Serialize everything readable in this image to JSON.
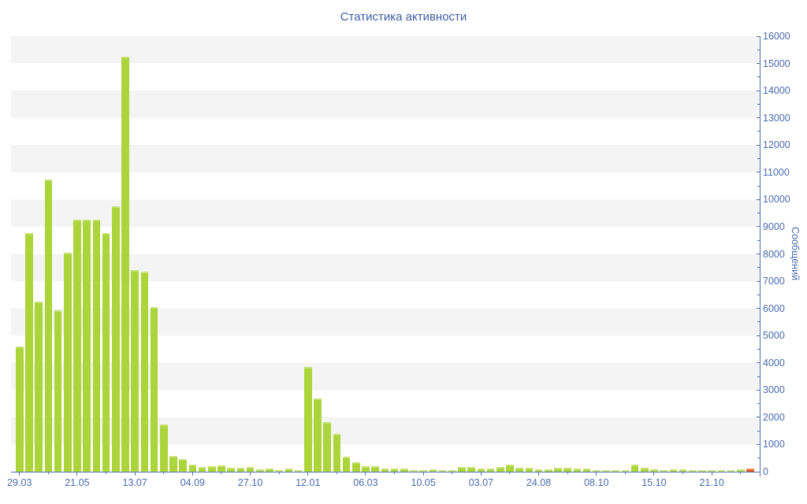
{
  "title": "Статистика активности",
  "colors": {
    "bar": "#abd53a",
    "bar_top": "#c6e170",
    "last_bar": "#e2531d",
    "last_bar_top": "#ef8a57",
    "axis": "#5272b4",
    "label_text": "#4a6aae",
    "title_text": "#3f5ea7",
    "stripe": "#f4f4f4",
    "background": "#ffffff"
  },
  "chart_data": {
    "type": "bar",
    "title": "Статистика активности",
    "xlabel": "",
    "ylabel": "Сообщений",
    "ylim": [
      0,
      16000
    ],
    "y_tick_step": 1000,
    "grid": "horizontal-stripes",
    "legend": "none",
    "x_tick_labels": [
      "29.03",
      "21.05",
      "13.07",
      "04.09",
      "27.10",
      "12.01",
      "06.03",
      "10.05",
      "03.07",
      "24.08",
      "08.10",
      "15.10",
      "21.10"
    ],
    "x_tick_every_n_bars": 6,
    "values": [
      4600,
      8760,
      6260,
      10720,
      5930,
      8030,
      9270,
      9270,
      9260,
      8780,
      9750,
      15260,
      7400,
      7360,
      6060,
      1740,
      580,
      470,
      260,
      185,
      210,
      230,
      155,
      140,
      185,
      90,
      115,
      60,
      115,
      60,
      3850,
      2700,
      1830,
      1400,
      545,
      350,
      190,
      210,
      125,
      110,
      110,
      70,
      40,
      90,
      70,
      55,
      165,
      165,
      110,
      110,
      185,
      260,
      140,
      140,
      90,
      95,
      155,
      140,
      110,
      110,
      70,
      50,
      70,
      70,
      250,
      140,
      90,
      70,
      90,
      90,
      70,
      70,
      70,
      70,
      70,
      90,
      110
    ],
    "last_bar_highlighted": true
  }
}
